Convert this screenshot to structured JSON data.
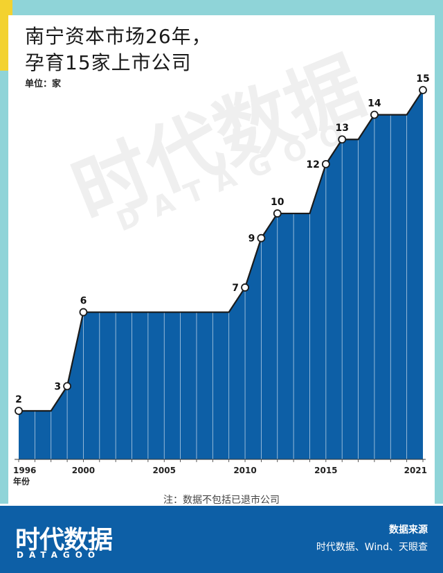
{
  "title_line1": "南宁资本市场26年，",
  "title_line2": "孕育15家上市公司",
  "unit_label": "单位：家",
  "watermark_cn": "时代数据",
  "watermark_en": "DATAGOO",
  "note": "注：数据不包括已退市公司",
  "footer": {
    "brand_cn": "时代数据",
    "brand_en": "DATAGOO",
    "source_title": "数据来源",
    "source_text": "时代数据、Wind、天眼查"
  },
  "colors": {
    "area_fill": "#0d5fa6",
    "line": "#1b1b1b",
    "footer_bg": "#0d5fa6",
    "frame_cyan": "#8fd4d8",
    "frame_yellow": "#f3d22f"
  },
  "chart_data": {
    "type": "area",
    "x": [
      1996,
      1997,
      1998,
      1999,
      2000,
      2001,
      2002,
      2003,
      2004,
      2005,
      2006,
      2007,
      2008,
      2009,
      2010,
      2011,
      2012,
      2013,
      2014,
      2015,
      2016,
      2017,
      2018,
      2019,
      2020,
      2021
    ],
    "values": [
      2,
      2,
      2,
      3,
      6,
      6,
      6,
      6,
      6,
      6,
      6,
      6,
      6,
      6,
      7,
      9,
      10,
      10,
      10,
      12,
      13,
      13,
      14,
      14,
      14,
      15
    ],
    "labeled_points": [
      {
        "x": 1996,
        "label": "2"
      },
      {
        "x": 1999,
        "label": "3"
      },
      {
        "x": 2000,
        "label": "6"
      },
      {
        "x": 2010,
        "label": "7"
      },
      {
        "x": 2011,
        "label": "9"
      },
      {
        "x": 2012,
        "label": "10"
      },
      {
        "x": 2015,
        "label": "12"
      },
      {
        "x": 2016,
        "label": "13"
      },
      {
        "x": 2018,
        "label": "14"
      },
      {
        "x": 2021,
        "label": "15"
      }
    ],
    "x_ticks": [
      {
        "value": 1996,
        "label": "1996"
      },
      {
        "value": 2000,
        "label": "2000"
      },
      {
        "value": 2005,
        "label": "2005"
      },
      {
        "value": 2010,
        "label": "2010"
      },
      {
        "value": 2015,
        "label": "2015"
      },
      {
        "value": 2021,
        "label": "2021"
      }
    ],
    "xlabel": "年份",
    "ylabel": "",
    "ylim": [
      0,
      15
    ],
    "grid": false,
    "legend": "none"
  }
}
